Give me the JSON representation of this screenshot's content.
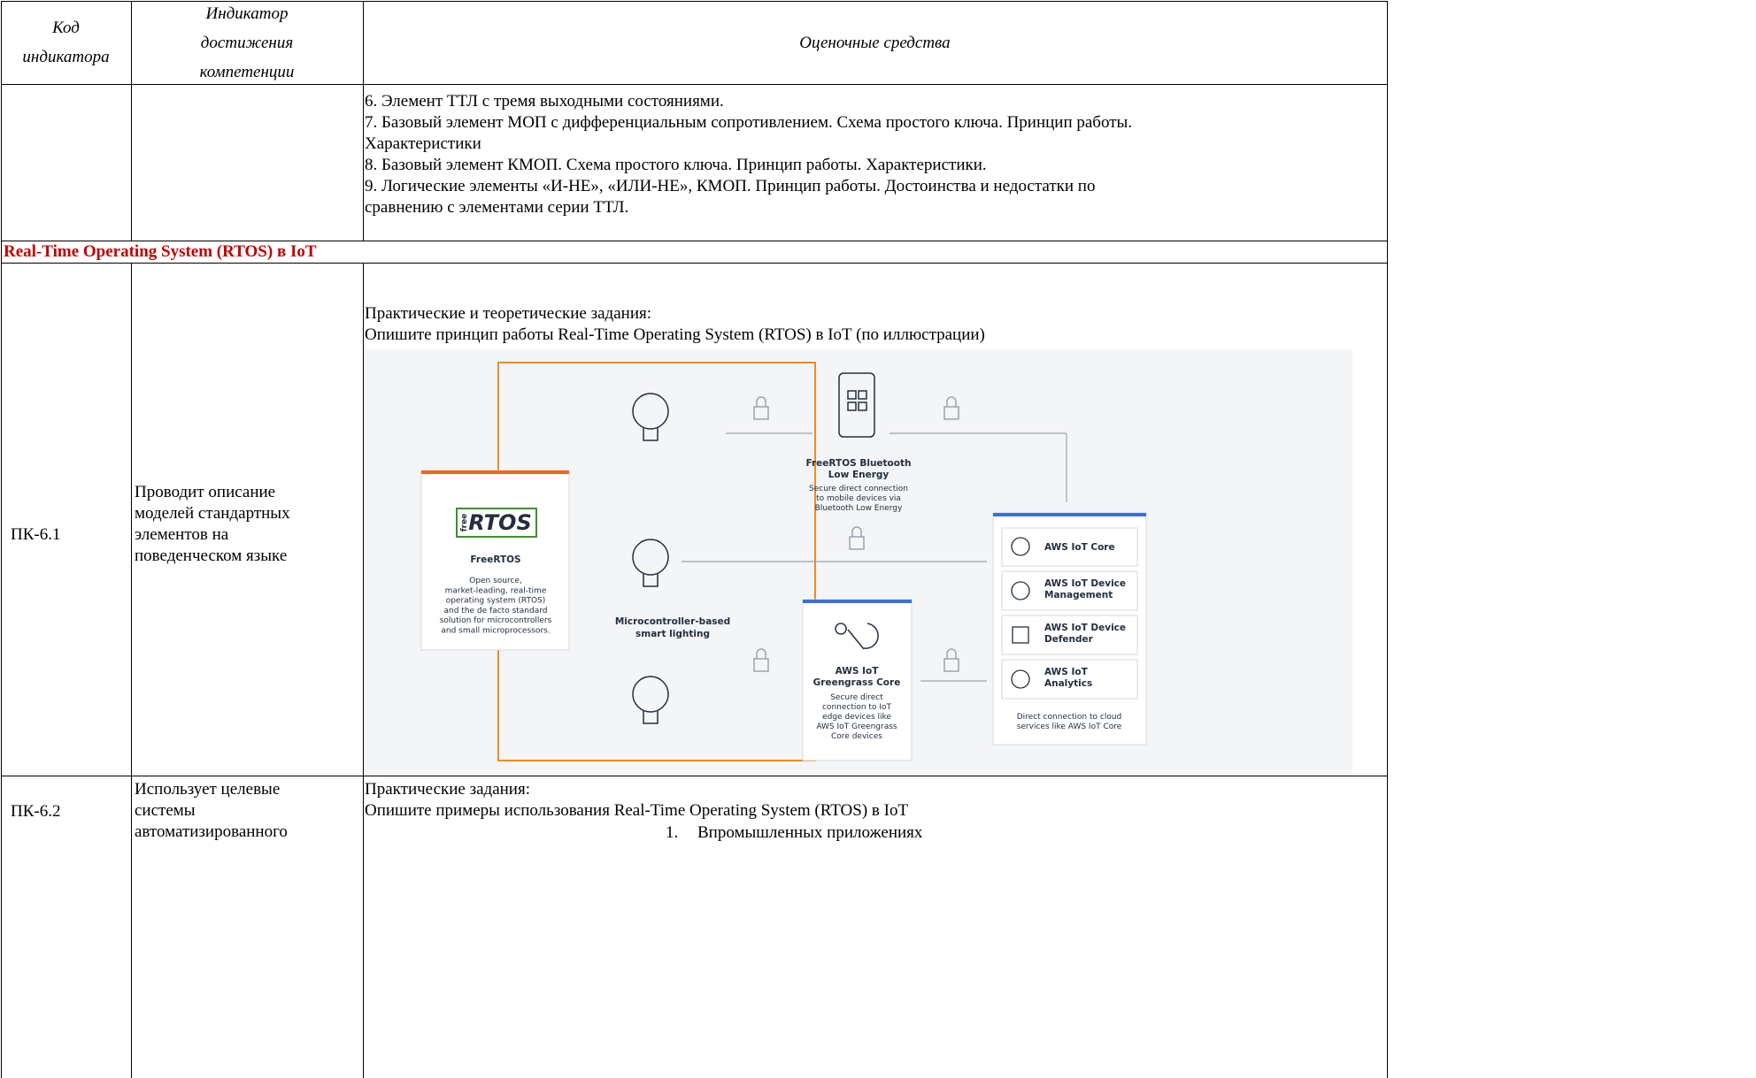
{
  "table": {
    "header": [
      [
        "Код",
        "индикатора"
      ],
      [
        "Индикатор",
        "достижения",
        "компетенции"
      ],
      [
        "Оценочные средства"
      ]
    ],
    "continuation_lines": [
      "6. Элемент ТТЛ с тремя выходными состояниями.",
      "7. Базовый элемент МОП с дифференциальным сопротивлением. Схема простого ключа. Принцип работы.",
      "Характеристики",
      "8. Базовый элемент КМОП. Схема простого ключа. Принцип работы. Характеристики.",
      "9. Логические элементы «И-НЕ», «ИЛИ-НЕ», КМОП. Принцип работы. Достоинства и недостатки по",
      "сравнению с элементами серии ТТЛ."
    ],
    "section": "Real-Time Operating System (RTOS) в IoT",
    "rows": [
      {
        "code": "ПК-6.1",
        "indicator": [
          "Проводит описание",
          "моделей стандартных",
          "элементов на",
          "поведенческом языке"
        ],
        "tools": [
          "Практические и теоретические задания:",
          "Опишите принцип работы Real-Time Operating System (RTOS) в IoT (по иллюстрации)"
        ]
      },
      {
        "code": "ПК-6.2",
        "indicator": [
          "Использует целевые",
          "системы",
          "автоматизированного"
        ],
        "tools": [
          "Практические задания:",
          "Опишите примеры использования Real-Time Operating System (RTOS) в IoT"
        ],
        "list": [
          {
            "number": "1.",
            "text": "Впромышленных приложениях"
          }
        ]
      }
    ]
  },
  "diagram": {
    "freertos": {
      "logo_small": "free",
      "logo": "RTOS",
      "title": "FreeRTOS",
      "description": [
        "Open source,",
        "market-leading, real-time",
        "operating system (RTOS)",
        "and the de facto standard",
        "solution for microcontrollers",
        "and small microprocessors."
      ]
    },
    "lighting": [
      "Microcontroller-based",
      "smart lighting"
    ],
    "ble": {
      "title": [
        "FreeRTOS Bluetooth",
        "Low Energy"
      ],
      "description": [
        "Secure direct connection",
        "to mobile devices via",
        "Bluetooth Low Energy"
      ]
    },
    "greengrass": {
      "title": [
        "AWS IoT",
        "Greengrass Core"
      ],
      "description": [
        "Secure direct",
        "connection to IoT",
        "edge devices like",
        "AWS IoT Greengrass",
        "Core devices"
      ]
    },
    "cloud": {
      "services": [
        [
          "AWS IoT Core"
        ],
        [
          "AWS IoT Device",
          "Management"
        ],
        [
          "AWS IoT Device",
          "Defender"
        ],
        [
          "AWS IoT",
          "Analytics"
        ]
      ],
      "description": [
        "Direct connection to cloud",
        "services like AWS IoT Core"
      ]
    }
  }
}
